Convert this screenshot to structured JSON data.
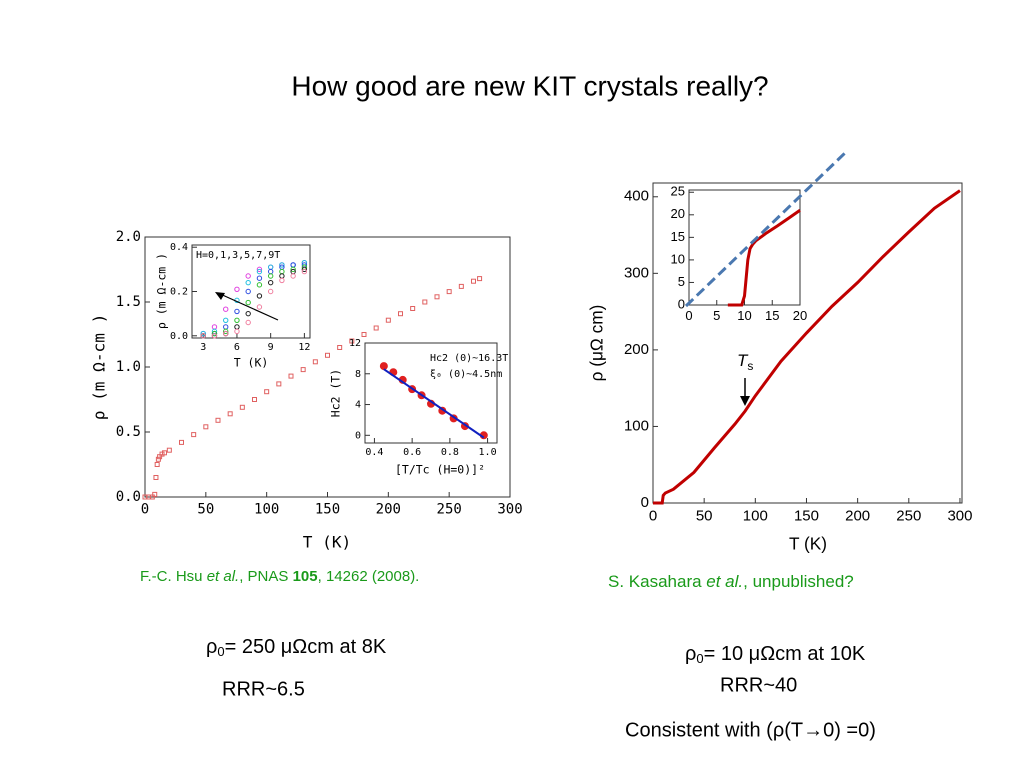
{
  "title": "How good are new KIT crystals really?",
  "chart_data": [
    {
      "type": "scatter",
      "marker": "square-open",
      "x": [
        0,
        3,
        6,
        8,
        9,
        10,
        11,
        12,
        14,
        16,
        20,
        30,
        40,
        50,
        60,
        70,
        80,
        90,
        100,
        110,
        120,
        130,
        140,
        150,
        160,
        170,
        180,
        190,
        200,
        210,
        220,
        230,
        240,
        250,
        260,
        270,
        275
      ],
      "series": [
        {
          "color": "#e06060",
          "values": [
            0,
            0,
            0,
            0.02,
            0.15,
            0.25,
            0.29,
            0.31,
            0.33,
            0.34,
            0.36,
            0.42,
            0.48,
            0.54,
            0.59,
            0.64,
            0.69,
            0.75,
            0.81,
            0.87,
            0.93,
            0.98,
            1.04,
            1.09,
            1.15,
            1.2,
            1.25,
            1.3,
            1.36,
            1.41,
            1.45,
            1.5,
            1.54,
            1.58,
            1.62,
            1.66,
            1.68
          ]
        }
      ],
      "xlim": [
        0,
        300
      ],
      "ylim": [
        0,
        2
      ],
      "xticks": [
        0,
        50,
        100,
        150,
        200,
        250,
        300
      ],
      "yticks": [
        {
          "value": 0,
          "label": "0.0"
        },
        0.5,
        {
          "value": 1,
          "label": "1.0"
        },
        1.5,
        {
          "value": 2,
          "label": "2.0"
        }
      ],
      "xlabel": "T (K)",
      "ylabel": "ρ (m Ω-cm )"
    },
    {
      "type": "scatter",
      "marker": "circle-open",
      "x": [
        3,
        4,
        5,
        6,
        7,
        8,
        9,
        10,
        11,
        12
      ],
      "series": [
        {
          "color": "#e040e0",
          "values": [
            0.01,
            0.04,
            0.12,
            0.21,
            0.27,
            0.3,
            0.31,
            0.32,
            0.32,
            0.33
          ]
        },
        {
          "color": "#20c0e0",
          "values": [
            0.01,
            0.02,
            0.07,
            0.16,
            0.24,
            0.29,
            0.31,
            0.32,
            0.32,
            0.33
          ]
        },
        {
          "color": "#3050e0",
          "values": [
            0,
            0.01,
            0.04,
            0.11,
            0.2,
            0.26,
            0.29,
            0.31,
            0.32,
            0.32
          ]
        },
        {
          "color": "#30c030",
          "values": [
            0,
            0.01,
            0.02,
            0.07,
            0.15,
            0.23,
            0.27,
            0.29,
            0.3,
            0.31
          ]
        },
        {
          "color": "#202020",
          "values": [
            0,
            0,
            0.01,
            0.04,
            0.1,
            0.18,
            0.24,
            0.27,
            0.29,
            0.3
          ]
        },
        {
          "color": "#f080a0",
          "values": [
            0,
            0,
            0.01,
            0.02,
            0.06,
            0.13,
            0.2,
            0.25,
            0.27,
            0.29
          ]
        }
      ],
      "xlim": [
        2,
        12.5
      ],
      "ylim": [
        -0.01,
        0.41
      ],
      "xticks": [
        3,
        6,
        9,
        12
      ],
      "yticks": [
        {
          "value": 0,
          "label": "0.0"
        },
        0.2,
        0.4
      ],
      "xlabel": "T (K)",
      "ylabel": "ρ (m Ω-cm )",
      "annotations": [
        "H=0,1,3,5,7,9T"
      ]
    },
    {
      "type": "scatter",
      "marker": "circle",
      "x": [
        0.45,
        0.5,
        0.55,
        0.6,
        0.65,
        0.7,
        0.76,
        0.82,
        0.88,
        0.98
      ],
      "series": [
        {
          "color": "#e02020",
          "values": [
            9,
            8.2,
            7.2,
            6,
            5.2,
            4.1,
            3.2,
            2.2,
            1.2,
            0
          ]
        },
        {
          "color": "#1020c0",
          "style": "line",
          "x": [
            0.45,
            0.98
          ],
          "values": [
            8.6,
            -0.3
          ]
        }
      ],
      "xlim": [
        0.35,
        1.05
      ],
      "ylim": [
        -1,
        12
      ],
      "xticks": [
        0.4,
        0.6,
        0.8,
        {
          "value": 1,
          "label": "1.0"
        }
      ],
      "yticks": [
        0,
        4,
        8,
        12
      ],
      "xlabel": "[T/Tc (H=0)]²",
      "ylabel": "Hc2 (T)",
      "annotations": [
        "Hc2 (0)~16.3T",
        "ξ₀ (0)~4.5nm"
      ]
    },
    {
      "type": "line",
      "x": [
        0,
        5,
        9,
        10,
        12,
        20,
        40,
        60,
        80,
        90,
        100,
        125,
        150,
        175,
        200,
        225,
        250,
        275,
        300
      ],
      "series": [
        {
          "color": "#c00000",
          "values": [
            0,
            0,
            0,
            10,
            13,
            18,
            40,
            72,
            103,
            120,
            140,
            185,
            222,
            257,
            288,
            322,
            354,
            385,
            408
          ]
        }
      ],
      "xlim": [
        0,
        302
      ],
      "ylim": [
        0,
        418
      ],
      "xticks": [
        0,
        50,
        100,
        150,
        200,
        250,
        300
      ],
      "yticks": [
        0,
        100,
        200,
        300,
        400
      ],
      "xlabel": "T (K)",
      "ylabel": "ρ (μΩ cm)",
      "annotation": {
        "text": "T",
        "sub": "s"
      }
    },
    {
      "type": "line",
      "x": [
        7,
        8,
        9,
        9.5,
        10,
        10.3,
        10.6,
        11,
        11.5,
        12,
        14,
        16,
        18,
        20
      ],
      "series": [
        {
          "color": "#c00000",
          "values": [
            0,
            0,
            0,
            0,
            2,
            6,
            10,
            12.5,
            13.5,
            14.2,
            16,
            17.6,
            19.3,
            21
          ]
        }
      ],
      "xlim": [
        0,
        20
      ],
      "ylim": [
        0,
        25.5
      ],
      "xticks": [
        0,
        5,
        10,
        15,
        20
      ],
      "yticks": [
        0,
        5,
        10,
        15,
        20,
        25
      ]
    }
  ],
  "citations": [
    [
      "F.-C. Hsu ",
      "et al.",
      ", PNAS ",
      "105",
      ", 14262 (2008)."
    ],
    [
      "S. Kasahara ",
      "et al.",
      ", unpublished?"
    ]
  ],
  "left_notes": [
    {
      "symbol": "ρ",
      "sub": "0",
      "rest": "= 250 μΩcm at 8K"
    },
    "RRR~6.5"
  ],
  "right_notes": [
    {
      "symbol": "ρ",
      "sub": "0",
      "rest": "= 10 μΩcm at 10K"
    },
    "RRR~40",
    "Consistent with  (ρ(T→0) =0)"
  ]
}
